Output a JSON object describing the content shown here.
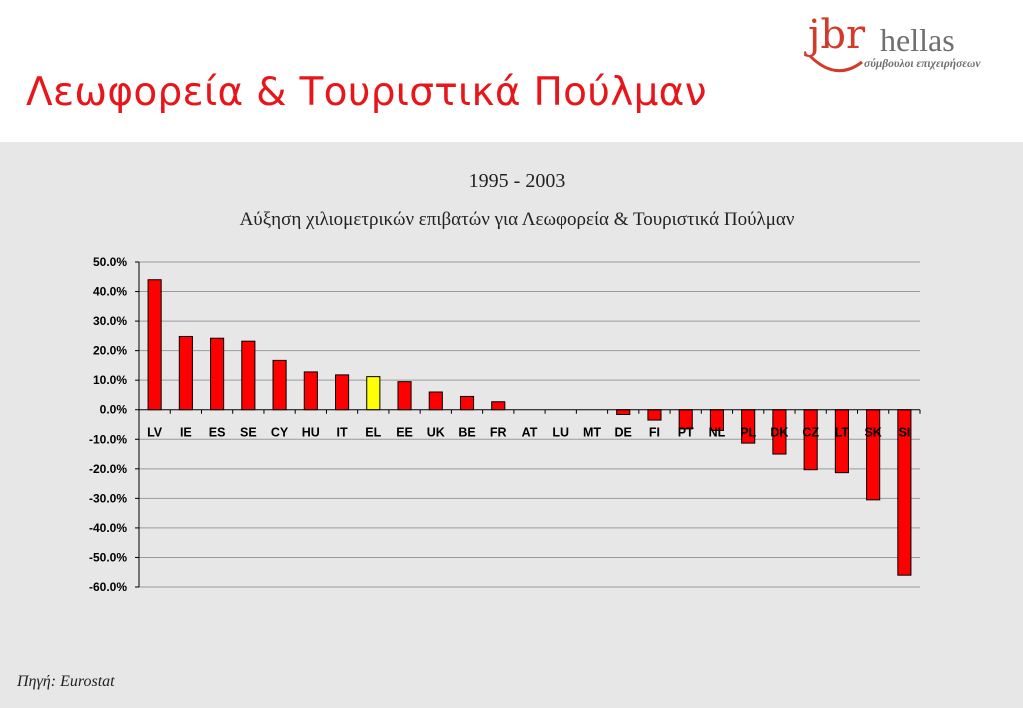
{
  "header": {
    "title": "Λεωφορεία & Τουριστικά Πούλμαν"
  },
  "logo": {
    "brand": "jbr",
    "name": "hellas",
    "tagline": "σύμβουλοι επιχειρήσεων"
  },
  "footer": {
    "source": "Πηγή: Eurostat"
  },
  "colors": {
    "title_red": "#e8161b",
    "bar_red": "#ff0000",
    "bar_highlight": "#ffff00",
    "panel_bg": "#e7e7e7"
  },
  "chart_data": {
    "type": "bar",
    "title": "1995 - 2003",
    "subtitle": "Αύξηση  χιλιομετρικών επιβατών για Λεωφορεία & Τουριστικά Πούλμαν",
    "categories": [
      "LV",
      "IE",
      "ES",
      "SE",
      "CY",
      "HU",
      "IT",
      "EL",
      "EE",
      "UK",
      "BE",
      "FR",
      "AT",
      "LU",
      "MT",
      "DE",
      "FI",
      "PT",
      "NL",
      "PL",
      "DK",
      "CZ",
      "LT",
      "SK",
      "SI"
    ],
    "values": [
      44.0,
      24.8,
      24.2,
      23.2,
      16.7,
      12.8,
      11.8,
      11.2,
      9.5,
      6.0,
      4.5,
      2.7,
      0.0,
      0.0,
      0.0,
      -1.6,
      -3.5,
      -6.5,
      -7.0,
      -11.3,
      -15.0,
      -20.3,
      -21.3,
      -30.5,
      -56.0
    ],
    "highlight_category": "EL",
    "ylim": [
      -60,
      50
    ],
    "yticks": [
      "50.0%",
      "40.0%",
      "30.0%",
      "20.0%",
      "10.0%",
      "0.0%",
      "-10.0%",
      "-20.0%",
      "-30.0%",
      "-40.0%",
      "-50.0%",
      "-60.0%"
    ],
    "ytick_values": [
      50,
      40,
      30,
      20,
      10,
      0,
      -10,
      -20,
      -30,
      -40,
      -50,
      -60
    ],
    "grid": true,
    "legend": "none"
  }
}
